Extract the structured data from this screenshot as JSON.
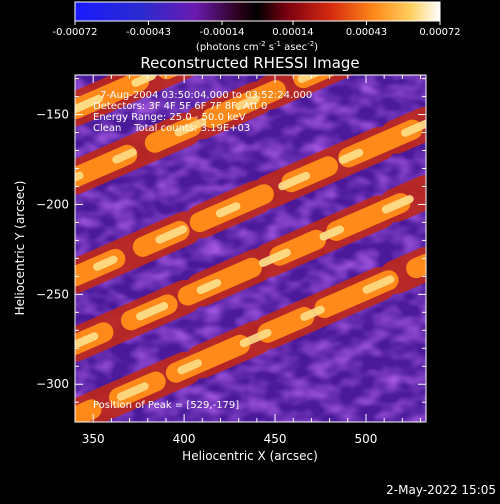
{
  "chart_data": {
    "type": "heatmap",
    "title": "Reconstructed RHESSI Image",
    "xlabel": "Heliocentric X (arcsec)",
    "ylabel": "Heliocentric Y (arcsec)",
    "xlim": [
      340,
      533
    ],
    "ylim": [
      -321,
      -128
    ],
    "xticks": [
      350,
      400,
      450,
      500
    ],
    "yticks": [
      -150,
      -200,
      -250,
      -300
    ],
    "colorbar": {
      "ticks": [
        "-0.00072",
        "-0.00043",
        "-0.00014",
        "0.00014",
        "0.00043",
        "0.00072"
      ],
      "range": [
        -0.00072,
        0.00072
      ],
      "unit_prefix": "(photons cm",
      "unit_sup1": "-2",
      "unit_mid1": " s",
      "unit_sup2": "-1",
      "unit_mid2": " asec",
      "unit_sup3": "-2",
      "unit_suffix": ")"
    },
    "annotations": {
      "line1": "7-Aug-2004 03:50:04.000 to 03:52:24.000",
      "line2": "Detectors: 3F 4F 5F 6F 7F 8F, Att 0",
      "line3": "Energy Range: 25.0 - 50.0 keV",
      "line4": "Clean    Total counts: 3.19E+03",
      "peak": "Position of Peak = [529,-179]"
    },
    "bands": [
      {
        "y_at_x_340": -147,
        "slope": 0.44,
        "level": 0.95
      },
      {
        "y_at_x_340": -185,
        "slope": 0.44,
        "level": 0.85
      },
      {
        "y_at_x_340": -240,
        "slope": 0.44,
        "level": 0.9
      },
      {
        "y_at_x_340": -278,
        "slope": 0.44,
        "level": 0.92
      },
      {
        "y_at_x_340": -318,
        "slope": 0.44,
        "level": 0.88
      }
    ],
    "peak_position": [
      529,
      -179
    ]
  },
  "footer": {
    "timestamp": "2-May-2022 15:05"
  }
}
